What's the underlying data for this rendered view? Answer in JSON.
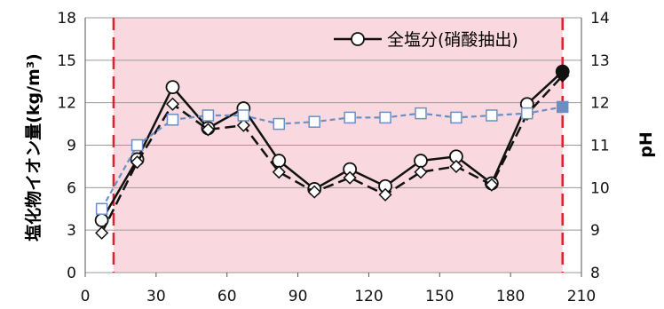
{
  "chart_data": {
    "type": "line",
    "ylabel": "塩化物イオン量(kg/m³)",
    "y2label": "pH",
    "x_ticks": [
      "0",
      "30",
      "60",
      "90",
      "120",
      "150",
      "180",
      "210"
    ],
    "y_ticks": [
      "0",
      "3",
      "6",
      "9",
      "12",
      "15",
      "18"
    ],
    "y2_ticks": [
      "8",
      "9",
      "10",
      "11",
      "12",
      "13",
      "14"
    ],
    "xlim": [
      0,
      210
    ],
    "ylim": [
      0,
      18
    ],
    "y2lim": [
      8,
      14
    ],
    "grid": "horizontal",
    "legend_placement": "top-right",
    "background_region": {
      "x_start": 12,
      "x_end": 202,
      "color": "#f9d9df"
    },
    "boundary_line_color": "#e0202a",
    "series": [
      {
        "name": "全塩分(硝酸抽出)",
        "axis": "left",
        "marker": "open-circle",
        "line": "solid",
        "color": "#111111",
        "x": [
          7,
          22,
          37,
          52,
          67,
          82,
          97,
          112,
          127,
          142,
          157,
          172,
          187,
          202
        ],
        "y": [
          3.7,
          8.0,
          13.1,
          10.2,
          11.6,
          7.9,
          5.9,
          7.3,
          6.1,
          7.9,
          8.2,
          6.3,
          11.9,
          14.2
        ]
      },
      {
        "axis": "left",
        "marker": "open-diamond",
        "line": "dashed",
        "color": "#111111",
        "x": [
          7,
          22,
          37,
          52,
          67,
          82,
          97,
          112,
          127,
          142,
          157,
          172,
          187,
          202
        ],
        "y": [
          2.8,
          7.8,
          11.9,
          10.1,
          10.4,
          7.1,
          5.7,
          6.7,
          5.5,
          7.1,
          7.5,
          6.2,
          11.2,
          13.9
        ]
      },
      {
        "axis": "right",
        "marker": "open-square",
        "line": "dashed",
        "color": "#6b8fc4",
        "x": [
          7,
          22,
          37,
          52,
          67,
          82,
          97,
          112,
          127,
          142,
          157,
          172,
          187,
          202
        ],
        "y": [
          9.5,
          11.0,
          11.6,
          11.7,
          11.7,
          11.5,
          11.55,
          11.65,
          11.65,
          11.75,
          11.65,
          11.7,
          11.75,
          11.9
        ]
      }
    ]
  },
  "colors": {
    "grid": "#9a9a9a",
    "axis": "#555555"
  }
}
